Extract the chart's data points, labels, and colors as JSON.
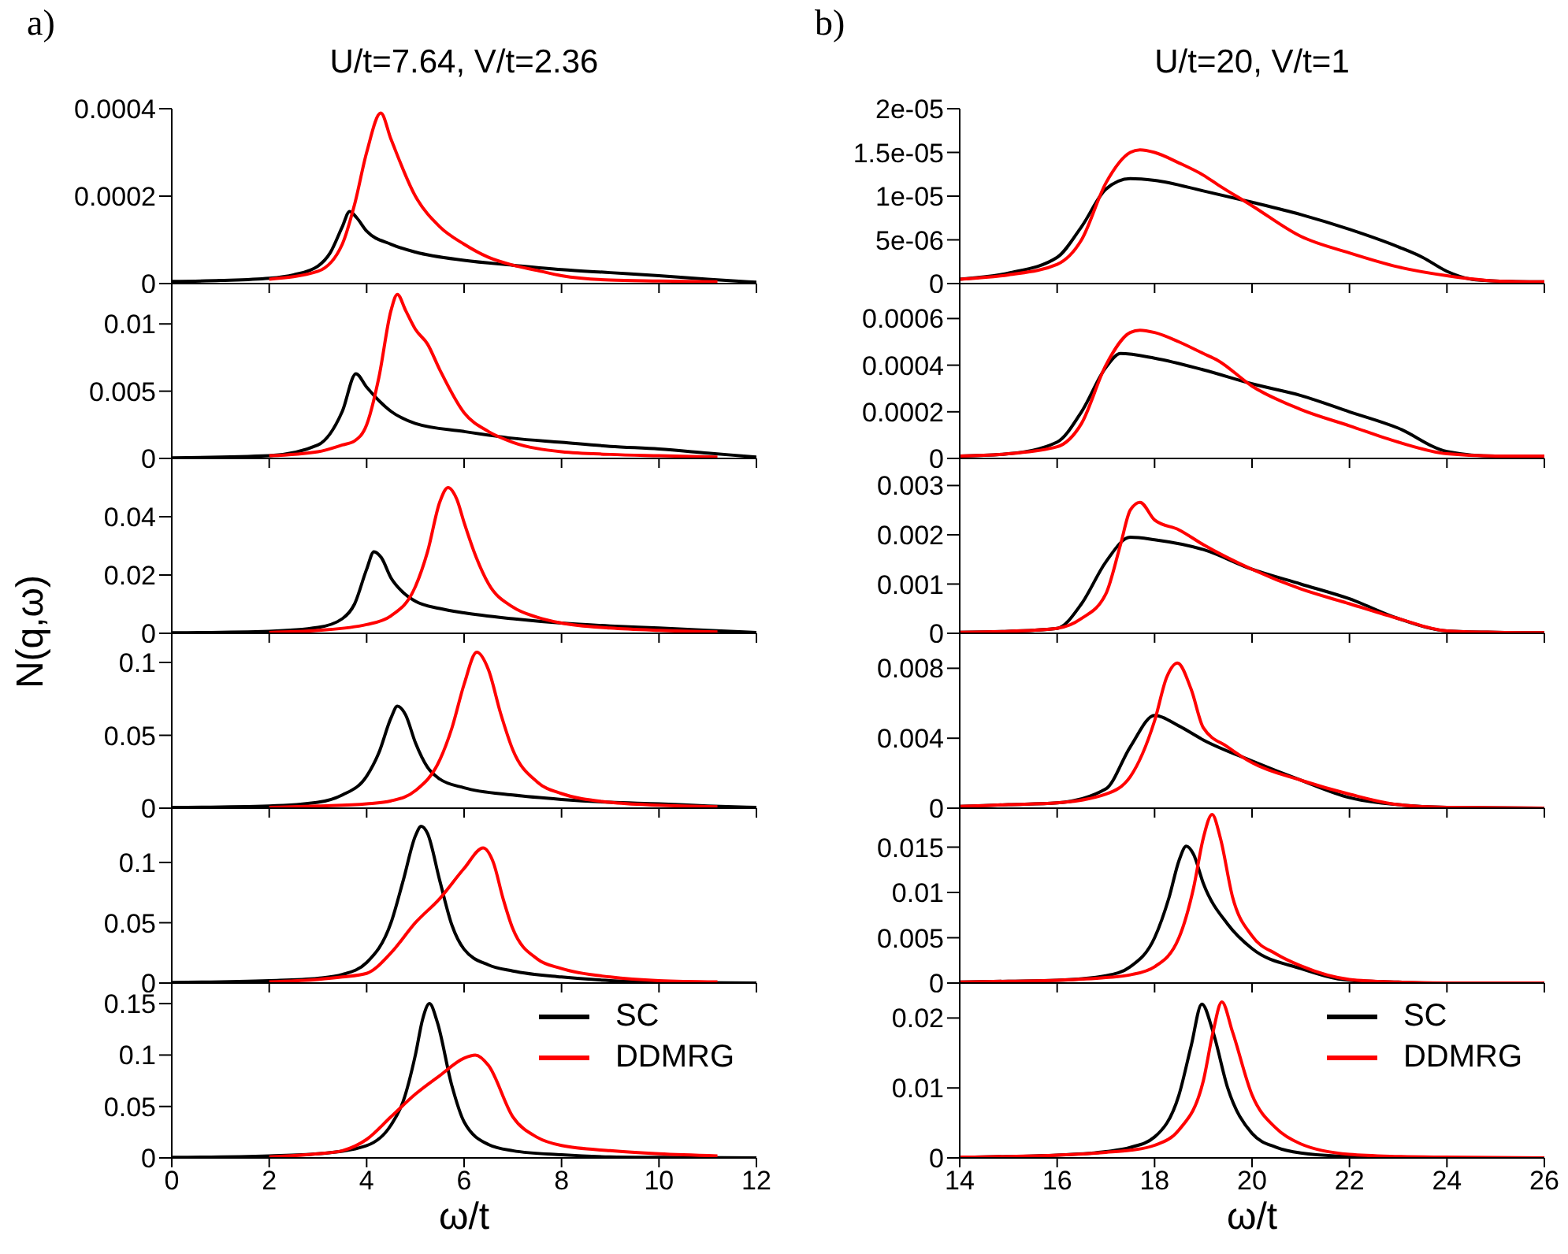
{
  "chart_data": [
    {
      "type": "line",
      "title": "U/t=7.64, V/t=2.36",
      "annotations": [
        "a)"
      ],
      "xlim": [
        0,
        12
      ],
      "xticks": [
        0,
        2,
        4,
        6,
        8,
        10,
        12
      ],
      "ylim": [
        0,
        0.0004
      ],
      "yticks": [
        0,
        0.0002,
        0.0004
      ],
      "tick_labels": "y",
      "series": [
        {
          "color": "#000000",
          "x": [
            0,
            1,
            2,
            2.5,
            3,
            3.25,
            3.5,
            3.65,
            3.8,
            4,
            4.5,
            5,
            6,
            7,
            8,
            9,
            10,
            11,
            12
          ],
          "values": [
            5e-06,
            7e-06,
            1.2e-05,
            2e-05,
            4e-05,
            7e-05,
            0.00013,
            0.000165,
            0.00015,
            0.00012,
            9e-05,
            7.2e-05,
            5.3e-05,
            4.2e-05,
            3.2e-05,
            2.5e-05,
            1.8e-05,
            1e-05,
            3e-06
          ]
        },
        {
          "color": "#ff0000",
          "x": [
            2,
            3,
            3.5,
            3.75,
            4,
            4.29,
            4.5,
            5,
            5.5,
            6,
            6.5,
            7,
            7.5,
            8,
            9,
            10,
            11.2
          ],
          "values": [
            1e-05,
            2.8e-05,
            9e-05,
            0.00018,
            0.0003,
            0.00039,
            0.00033,
            0.0002,
            0.00013,
            9e-05,
            6e-05,
            4.2e-05,
            3e-05,
            1.8e-05,
            8e-06,
            6e-06,
            4e-06
          ]
        }
      ]
    },
    {
      "type": "line",
      "xlim": [
        0,
        12
      ],
      "xticks": [
        0,
        2,
        4,
        6,
        8,
        10,
        12
      ],
      "ylim": [
        0,
        0.013
      ],
      "yticks": [
        0,
        0.005,
        0.01
      ],
      "tick_labels": "y",
      "series": [
        {
          "color": "#000000",
          "x": [
            0,
            2,
            3,
            3.5,
            3.78,
            4,
            4.5,
            5,
            6,
            7,
            8,
            9,
            10,
            11,
            12
          ],
          "values": [
            5e-05,
            0.0002,
            0.001,
            0.0035,
            0.0063,
            0.0053,
            0.0035,
            0.0026,
            0.002,
            0.0015,
            0.0012,
            0.0009,
            0.0007,
            0.0004,
            0.0001
          ]
        },
        {
          "color": "#ff0000",
          "x": [
            2,
            3,
            3.5,
            3.75,
            4,
            4.25,
            4.5,
            4.63,
            4.8,
            5,
            5.25,
            5.5,
            6,
            6.5,
            7,
            8,
            9,
            10,
            11.2
          ],
          "values": [
            0.0002,
            0.0005,
            0.001,
            0.0013,
            0.0025,
            0.006,
            0.011,
            0.0122,
            0.011,
            0.0096,
            0.0085,
            0.0066,
            0.0034,
            0.002,
            0.0012,
            0.0005,
            0.0003,
            0.0002,
            0.0001
          ]
        }
      ]
    },
    {
      "type": "line",
      "ylabel": "N(q,ω)",
      "xlim": [
        0,
        12
      ],
      "xticks": [
        0,
        2,
        4,
        6,
        8,
        10,
        12
      ],
      "ylim": [
        0,
        0.06
      ],
      "yticks": [
        0,
        0.02,
        0.04
      ],
      "tick_labels": "y",
      "series": [
        {
          "color": "#000000",
          "x": [
            0,
            2,
            3,
            3.5,
            3.75,
            4,
            4.15,
            4.3,
            4.5,
            4.75,
            5,
            5.5,
            6,
            7,
            8,
            9,
            10,
            11,
            12
          ],
          "values": [
            0.0002,
            0.0007,
            0.002,
            0.005,
            0.01,
            0.022,
            0.028,
            0.026,
            0.019,
            0.014,
            0.011,
            0.0085,
            0.007,
            0.005,
            0.0035,
            0.0025,
            0.0018,
            0.001,
            0.0003
          ]
        },
        {
          "color": "#ff0000",
          "x": [
            2,
            3,
            4,
            4.5,
            5,
            5.25,
            5.5,
            5.67,
            5.85,
            6,
            6.25,
            6.5,
            7,
            7.5,
            8,
            9,
            10,
            11.2
          ],
          "values": [
            0.0003,
            0.001,
            0.003,
            0.006,
            0.016,
            0.028,
            0.045,
            0.05,
            0.046,
            0.038,
            0.026,
            0.017,
            0.009,
            0.0055,
            0.0035,
            0.0018,
            0.001,
            0.0005
          ]
        }
      ]
    },
    {
      "type": "line",
      "xlim": [
        0,
        12
      ],
      "xticks": [
        0,
        2,
        4,
        6,
        8,
        10,
        12
      ],
      "ylim": [
        0,
        0.12
      ],
      "yticks": [
        0,
        0.05,
        0.1
      ],
      "tick_labels": "y",
      "series": [
        {
          "color": "#000000",
          "x": [
            0,
            2,
            3,
            3.5,
            4,
            4.25,
            4.5,
            4.63,
            4.8,
            5,
            5.25,
            5.5,
            6,
            7,
            8,
            9,
            10,
            11,
            12
          ],
          "values": [
            0.0005,
            0.0015,
            0.004,
            0.009,
            0.022,
            0.038,
            0.062,
            0.07,
            0.064,
            0.045,
            0.028,
            0.02,
            0.014,
            0.009,
            0.006,
            0.004,
            0.003,
            0.0015,
            0.0005
          ]
        },
        {
          "color": "#ff0000",
          "x": [
            2,
            3,
            4,
            4.5,
            5,
            5.5,
            5.75,
            6,
            6.26,
            6.5,
            6.75,
            7,
            7.5,
            8,
            9,
            10,
            11.2
          ],
          "values": [
            0.0005,
            0.0015,
            0.003,
            0.005,
            0.012,
            0.033,
            0.055,
            0.085,
            0.107,
            0.095,
            0.065,
            0.04,
            0.018,
            0.01,
            0.004,
            0.002,
            0.001
          ]
        }
      ]
    },
    {
      "type": "line",
      "xlim": [
        0,
        12
      ],
      "xticks": [
        0,
        2,
        4,
        6,
        8,
        10,
        12
      ],
      "ylim": [
        0,
        0.145
      ],
      "yticks": [
        0,
        0.05,
        0.1
      ],
      "tick_labels": "y",
      "series": [
        {
          "color": "#000000",
          "x": [
            0,
            2,
            3,
            3.5,
            4,
            4.5,
            4.75,
            5,
            5.12,
            5.25,
            5.5,
            5.75,
            6,
            6.5,
            7,
            8,
            9,
            10,
            12
          ],
          "values": [
            0.0005,
            0.002,
            0.004,
            0.007,
            0.017,
            0.05,
            0.085,
            0.122,
            0.13,
            0.124,
            0.085,
            0.048,
            0.028,
            0.015,
            0.01,
            0.005,
            0.002,
            0.0008,
            0
          ]
        },
        {
          "color": "#ff0000",
          "x": [
            2,
            3,
            3.5,
            4,
            4.5,
            5,
            5.5,
            6,
            6.39,
            6.6,
            6.8,
            7,
            7.5,
            8,
            9,
            10,
            11.2
          ],
          "values": [
            0.001,
            0.003,
            0.005,
            0.008,
            0.025,
            0.05,
            0.07,
            0.095,
            0.112,
            0.1,
            0.07,
            0.045,
            0.02,
            0.012,
            0.005,
            0.002,
            0.001
          ]
        }
      ]
    },
    {
      "type": "line",
      "xlabel": "ω/t",
      "legend": "top right",
      "xlim": [
        0,
        12
      ],
      "xticks": [
        0,
        2,
        4,
        6,
        8,
        10,
        12
      ],
      "ylim": [
        0,
        0.17
      ],
      "yticks": [
        0,
        0.05,
        0.1,
        0.15
      ],
      "series": [
        {
          "name": "SC",
          "color": "#000000",
          "x": [
            0,
            2,
            3,
            4,
            4.5,
            4.75,
            5,
            5.15,
            5.29,
            5.45,
            5.75,
            6,
            6.5,
            7,
            8,
            9,
            10,
            12
          ],
          "values": [
            0.0005,
            0.002,
            0.004,
            0.012,
            0.032,
            0.055,
            0.1,
            0.135,
            0.15,
            0.132,
            0.07,
            0.035,
            0.013,
            0.007,
            0.003,
            0.001,
            0.0005,
            0
          ]
        },
        {
          "name": "DDMRG",
          "color": "#ff0000",
          "x": [
            2,
            3,
            3.5,
            4,
            4.5,
            5,
            5.5,
            6,
            6.23,
            6.5,
            7,
            7.5,
            8,
            9,
            10,
            11.2
          ],
          "values": [
            0.001,
            0.004,
            0.007,
            0.018,
            0.04,
            0.062,
            0.08,
            0.097,
            0.1,
            0.09,
            0.04,
            0.02,
            0.012,
            0.007,
            0.004,
            0.002
          ]
        }
      ]
    },
    {
      "type": "line",
      "title": "U/t=20, V/t=1",
      "annotations": [
        "b)"
      ],
      "xlim": [
        14,
        26
      ],
      "xticks": [
        14,
        16,
        18,
        20,
        22,
        24,
        26
      ],
      "ylim": [
        0,
        2e-05
      ],
      "yticks": [
        0,
        {
          "value": 5e-06,
          "label": "5e-06"
        },
        {
          "value": 1e-05,
          "label": "1e-05"
        },
        {
          "value": 1.5e-05,
          "label": "1.5e-05"
        },
        {
          "value": 2e-05,
          "label": "2e-05"
        }
      ],
      "tick_labels": "y",
      "series": [
        {
          "color": "#000000",
          "x": [
            14,
            15,
            16,
            16.5,
            17,
            17.5,
            18,
            19,
            20,
            21,
            22,
            23,
            23.5,
            24,
            24.5,
            25,
            26
          ],
          "values": [
            5e-07,
            1.2e-06,
            3e-06,
            6.5e-06,
            1.08e-05,
            1.2e-05,
            1.18e-05,
            1.06e-05,
            9.3e-06,
            7.9e-06,
            6.2e-06,
            4.2e-06,
            3e-06,
            1.4e-06,
            5e-07,
            3e-07,
            2e-07
          ]
        },
        {
          "color": "#ff0000",
          "x": [
            14,
            15,
            16,
            16.5,
            17,
            17.5,
            17.7,
            18,
            18.5,
            19,
            19.3,
            20,
            21,
            22,
            23,
            24,
            25,
            26
          ],
          "values": [
            5e-07,
            1e-06,
            2.2e-06,
            5e-06,
            1.15e-05,
            1.5e-05,
            1.53e-05,
            1.5e-05,
            1.38e-05,
            1.24e-05,
            1.13e-05,
            8.9e-06,
            5.4e-06,
            3.5e-06,
            1.9e-06,
            9e-07,
            3e-07,
            2e-07
          ]
        }
      ]
    },
    {
      "type": "line",
      "xlim": [
        14,
        26
      ],
      "xticks": [
        14,
        16,
        18,
        20,
        22,
        24,
        26
      ],
      "ylim": [
        0,
        0.00075
      ],
      "yticks": [
        0,
        0.0002,
        0.0004,
        0.0006
      ],
      "tick_labels": "y",
      "series": [
        {
          "color": "#000000",
          "x": [
            14,
            15,
            16,
            16.5,
            17,
            17.3,
            18,
            19,
            20,
            21,
            22,
            23,
            24,
            25,
            26
          ],
          "values": [
            1e-05,
            2e-05,
            7e-05,
            0.0002,
            0.00039,
            0.00045,
            0.00043,
            0.00038,
            0.00032,
            0.00027,
            0.0002,
            0.00013,
            3e-05,
            1e-05,
            1e-05
          ]
        },
        {
          "color": "#ff0000",
          "x": [
            14,
            15,
            16,
            16.5,
            17,
            17.5,
            17.7,
            18,
            18.5,
            19,
            19.3,
            20,
            21,
            22,
            23,
            24,
            25,
            26
          ],
          "values": [
            1e-05,
            2e-05,
            5e-05,
            0.00015,
            0.0004,
            0.00054,
            0.00055,
            0.00054,
            0.0005,
            0.00045,
            0.00042,
            0.00031,
            0.00021,
            0.00014,
            7e-05,
            2e-05,
            1e-05,
            1e-05
          ]
        }
      ]
    },
    {
      "type": "line",
      "xlim": [
        14,
        26
      ],
      "xticks": [
        14,
        16,
        18,
        20,
        22,
        24,
        26
      ],
      "ylim": [
        0,
        0.00355
      ],
      "yticks": [
        0,
        0.001,
        0.002,
        0.003
      ],
      "tick_labels": "y",
      "series": [
        {
          "color": "#000000",
          "x": [
            14,
            15,
            16,
            16.5,
            17,
            17.5,
            18,
            19,
            20,
            21,
            22,
            23,
            24,
            25,
            26
          ],
          "values": [
            2e-05,
            4e-05,
            0.0001,
            0.0006,
            0.00145,
            0.00195,
            0.0019,
            0.0017,
            0.0013,
            0.001,
            0.0007,
            0.0003,
            5e-05,
            2e-05,
            1e-05
          ]
        },
        {
          "color": "#ff0000",
          "x": [
            14,
            15,
            16,
            16.5,
            17,
            17.3,
            17.5,
            17.7,
            18,
            18.5,
            19,
            20,
            21,
            22,
            23,
            24,
            25,
            26
          ],
          "values": [
            2e-05,
            4e-05,
            0.0001,
            0.0003,
            0.0008,
            0.0018,
            0.0025,
            0.00266,
            0.0023,
            0.0021,
            0.0018,
            0.0013,
            0.0009,
            0.0006,
            0.0003,
            5e-05,
            2e-05,
            1e-05
          ]
        }
      ]
    },
    {
      "type": "line",
      "xlim": [
        14,
        26
      ],
      "xticks": [
        14,
        16,
        18,
        20,
        22,
        24,
        26
      ],
      "ylim": [
        0,
        0.01
      ],
      "yticks": [
        0,
        0.004,
        0.008
      ],
      "tick_labels": "y",
      "series": [
        {
          "color": "#000000",
          "x": [
            14,
            15,
            16,
            17,
            17.5,
            18,
            18.5,
            19,
            20,
            21,
            22,
            23,
            24,
            26
          ],
          "values": [
            0.0001,
            0.0002,
            0.0003,
            0.0011,
            0.0035,
            0.0053,
            0.0047,
            0.0039,
            0.0027,
            0.0016,
            0.0006,
            0.0002,
            5e-05,
            0
          ]
        },
        {
          "color": "#ff0000",
          "x": [
            14,
            15,
            16,
            17,
            17.5,
            18,
            18.25,
            18.47,
            18.75,
            19,
            19.5,
            20,
            21,
            22,
            23,
            24,
            26
          ],
          "values": [
            0.0001,
            0.0002,
            0.0003,
            0.0008,
            0.0018,
            0.005,
            0.0075,
            0.0083,
            0.0068,
            0.0046,
            0.0035,
            0.0026,
            0.0016,
            0.0008,
            0.0002,
            5e-05,
            0
          ]
        }
      ]
    },
    {
      "type": "line",
      "xlim": [
        14,
        26
      ],
      "xticks": [
        14,
        16,
        18,
        20,
        22,
        24,
        26
      ],
      "ylim": [
        0,
        0.0193
      ],
      "yticks": [
        0,
        0.005,
        0.01,
        0.015
      ],
      "tick_labels": "y",
      "series": [
        {
          "color": "#000000",
          "x": [
            14,
            15,
            16,
            17,
            17.5,
            18,
            18.3,
            18.5,
            18.65,
            18.8,
            19,
            19.5,
            20,
            21,
            22,
            23,
            24,
            26
          ],
          "values": [
            0.0001,
            0.0002,
            0.0003,
            0.0008,
            0.0018,
            0.005,
            0.0095,
            0.0135,
            0.0151,
            0.0142,
            0.011,
            0.0065,
            0.0038,
            0.0016,
            0.0003,
            0.0001,
            0,
            0
          ]
        },
        {
          "color": "#ff0000",
          "x": [
            14,
            15,
            16,
            17,
            17.5,
            18,
            18.5,
            18.8,
            19,
            19.18,
            19.35,
            19.6,
            20,
            20.5,
            21,
            22,
            23,
            24,
            26
          ],
          "values": [
            0.0001,
            0.0002,
            0.0003,
            0.0006,
            0.0009,
            0.0018,
            0.005,
            0.0105,
            0.016,
            0.0186,
            0.016,
            0.0095,
            0.0052,
            0.0032,
            0.0019,
            0.0004,
            0.0001,
            0,
            0
          ]
        }
      ]
    },
    {
      "type": "line",
      "xlabel": "ω/t",
      "legend": "top right",
      "xlim": [
        14,
        26
      ],
      "xticks": [
        14,
        16,
        18,
        20,
        22,
        24,
        26
      ],
      "ylim": [
        0,
        0.025
      ],
      "yticks": [
        0,
        0.01,
        0.02
      ],
      "series": [
        {
          "name": "SC",
          "color": "#000000",
          "x": [
            14,
            15,
            16,
            17,
            17.5,
            18,
            18.5,
            18.75,
            18.97,
            19.2,
            19.5,
            20,
            20.5,
            21,
            22,
            23,
            24,
            26
          ],
          "values": [
            0.0001,
            0.0002,
            0.0004,
            0.0009,
            0.0015,
            0.003,
            0.009,
            0.016,
            0.022,
            0.018,
            0.01,
            0.0035,
            0.0015,
            0.0007,
            0.0002,
            0.0001,
            0,
            0
          ]
        },
        {
          "name": "DDMRG",
          "color": "#ff0000",
          "x": [
            14,
            15,
            16,
            17,
            17.5,
            18,
            18.5,
            19,
            19.2,
            19.38,
            19.6,
            20,
            20.5,
            21,
            22,
            23,
            24,
            26
          ],
          "values": [
            0.0001,
            0.0002,
            0.0004,
            0.0008,
            0.0011,
            0.0018,
            0.004,
            0.011,
            0.018,
            0.0223,
            0.018,
            0.009,
            0.0042,
            0.002,
            0.0005,
            0.0002,
            0.0001,
            0
          ]
        }
      ]
    }
  ]
}
